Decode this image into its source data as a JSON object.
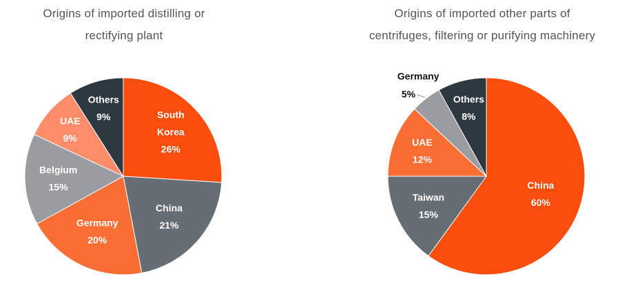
{
  "colors": {
    "orange_red": "#fb4d0b",
    "slate": "#666d74",
    "orange": "#fb6e33",
    "gray": "#9a9ca1",
    "salmon": "#fd8c6a",
    "dark_navy": "#2e3841",
    "title_text": "#555555",
    "label_dark": "#111111"
  },
  "chart_data": [
    {
      "type": "pie",
      "title_lines": [
        "Origins of imported distilling or",
        "rectifying plant"
      ],
      "slices": [
        {
          "label_lines": [
            "South",
            "Korea"
          ],
          "pct_label": "26%",
          "value": 26,
          "color": "#fb4d0b"
        },
        {
          "label_lines": [
            "China"
          ],
          "pct_label": "21%",
          "value": 21,
          "color": "#666d74"
        },
        {
          "label_lines": [
            "Germany"
          ],
          "pct_label": "20%",
          "value": 20,
          "color": "#fb6e33"
        },
        {
          "label_lines": [
            "Belgium"
          ],
          "pct_label": "15%",
          "value": 15,
          "color": "#9a9ca1"
        },
        {
          "label_lines": [
            "UAE"
          ],
          "pct_label": "9%",
          "value": 9,
          "color": "#fd8c6a"
        },
        {
          "label_lines": [
            "Others"
          ],
          "pct_label": "9%",
          "value": 9,
          "color": "#2e3841"
        }
      ]
    },
    {
      "type": "pie",
      "title_lines": [
        "Origins of imported other parts of",
        "centrifuges, filtering or purifying machinery"
      ],
      "slices": [
        {
          "label_lines": [
            "China"
          ],
          "pct_label": "60%",
          "value": 60,
          "color": "#fb4d0b"
        },
        {
          "label_lines": [
            "Taiwan"
          ],
          "pct_label": "15%",
          "value": 15,
          "color": "#666d74"
        },
        {
          "label_lines": [
            "UAE"
          ],
          "pct_label": "12%",
          "value": 12,
          "color": "#fb6e33"
        },
        {
          "label_lines": [
            "Germany"
          ],
          "pct_label": "5%",
          "value": 5,
          "color": "#9a9ca1",
          "outside": true
        },
        {
          "label_lines": [
            "Others"
          ],
          "pct_label": "8%",
          "value": 8,
          "color": "#2e3841"
        }
      ]
    }
  ]
}
